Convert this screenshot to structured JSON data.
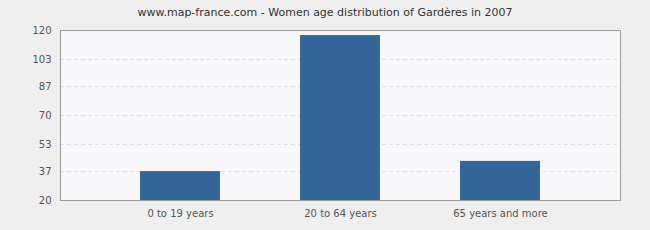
{
  "chart_data": {
    "type": "bar",
    "title": "www.map-france.com - Women age distribution of Gardères in 2007",
    "categories": [
      "0 to 19 years",
      "20 to 64 years",
      "65 years and more"
    ],
    "values": [
      37,
      117,
      43
    ],
    "color": "#336699",
    "ylim": [
      20,
      120
    ],
    "yticks": [
      20,
      37,
      53,
      70,
      87,
      103,
      120
    ],
    "grid": true
  }
}
